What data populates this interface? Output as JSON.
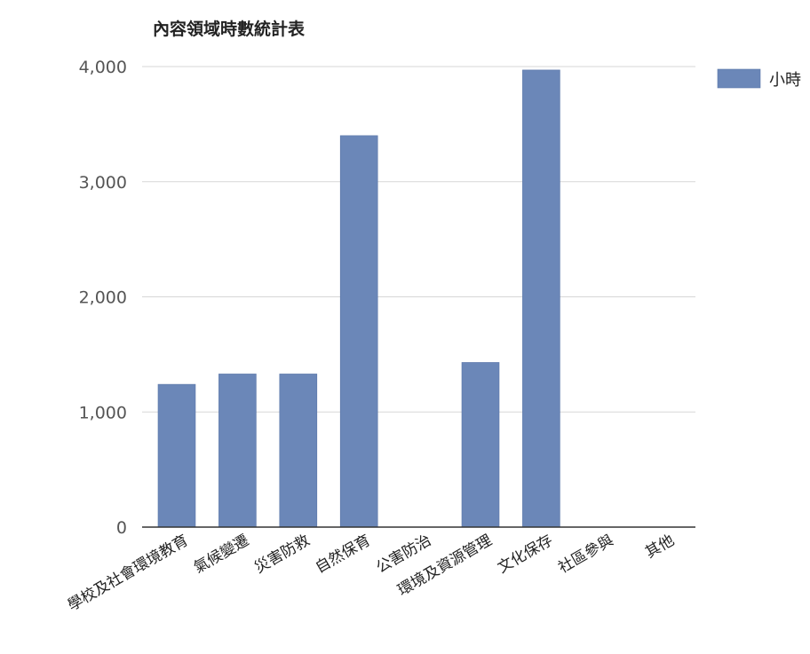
{
  "chart_data": {
    "type": "bar",
    "title": "內容領域時數統計表",
    "xlabel": "",
    "ylabel": "",
    "categories": [
      "學校及社會環境教育",
      "氣候變遷",
      "災害防救",
      "自然保育",
      "公害防治",
      "環境及資源管理",
      "文化保存",
      "社區參與",
      "其他"
    ],
    "series": [
      {
        "name": "小時",
        "values": [
          1240,
          1330,
          1330,
          3400,
          0,
          1430,
          3970,
          0,
          0
        ]
      }
    ],
    "ylim": [
      0,
      4000
    ],
    "yticks": [
      0,
      1000,
      2000,
      3000,
      4000
    ],
    "ytick_labels": [
      "0",
      "1,000",
      "2,000",
      "3,000",
      "4,000"
    ],
    "grid": true,
    "legend_position": "top-right",
    "colors": {
      "bar": "#6b87b8",
      "bar_edge": "#5a76a8",
      "grid": "#d7d7d7",
      "axis": "#333333",
      "text": "#222222",
      "tick_text": "#555555"
    }
  }
}
